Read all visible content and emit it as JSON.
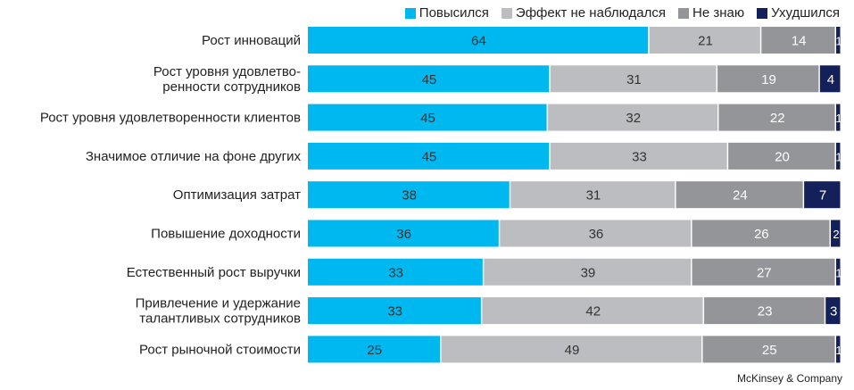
{
  "chart_data": {
    "type": "bar",
    "orientation": "horizontal",
    "stacked": true,
    "title": "",
    "categories": [
      "Рост инноваций",
      "Рост уровня удовлетво-\nренности сотрудников",
      "Рост уровня удовлетворенности клиентов",
      "Значимое отличие на фоне других",
      "Оптимизация затрат",
      "Повышение доходности",
      "Естественный рост выручки",
      "Привлечение и удержание\nталантливых сотрудников",
      "Рост рыночной стоимости"
    ],
    "series": [
      {
        "name": "Повысился",
        "color": "#00b8f0",
        "text_color": "#333333",
        "values": [
          64,
          45,
          45,
          45,
          38,
          36,
          33,
          33,
          25
        ]
      },
      {
        "name": "Эффект не наблюдался",
        "color": "#bcbdc0",
        "text_color": "#333333",
        "values": [
          21,
          31,
          32,
          33,
          31,
          36,
          39,
          42,
          49
        ]
      },
      {
        "name": "Не знаю",
        "color": "#939598",
        "text_color": "#ffffff",
        "values": [
          14,
          19,
          22,
          20,
          24,
          26,
          27,
          23,
          25
        ]
      },
      {
        "name": "Ухудшился",
        "color": "#14205a",
        "text_color": "#ffffff",
        "values": [
          1,
          4,
          1,
          1,
          7,
          2,
          1,
          3,
          1
        ]
      }
    ],
    "xlim": [
      0,
      100
    ],
    "legend_position": "top-right",
    "grid": false
  },
  "credit": "McKinsey & Company"
}
